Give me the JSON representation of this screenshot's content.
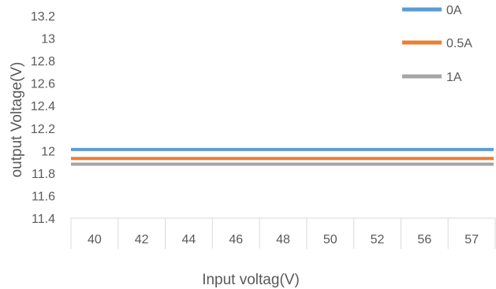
{
  "chart_data": {
    "type": "line",
    "title": "",
    "xlabel": "Input voltag(V)",
    "ylabel": "output Voltage(V)",
    "categories": [
      "40",
      "42",
      "44",
      "46",
      "48",
      "50",
      "52",
      "56",
      "57"
    ],
    "ylim": [
      11.4,
      13.2
    ],
    "y_ticks": [
      "11.4",
      "11.6",
      "11.8",
      "12",
      "12.2",
      "12.4",
      "12.6",
      "12.8",
      "13",
      "13.2"
    ],
    "grid": false,
    "legend_position": "top-right",
    "series": [
      {
        "name": "0A",
        "values": [
          12.01,
          12.01,
          12.01,
          12.01,
          12.01,
          12.01,
          12.01,
          12.01,
          12.01
        ],
        "color": "#5b9bd5"
      },
      {
        "name": "0.5A",
        "values": [
          11.93,
          11.93,
          11.93,
          11.93,
          11.93,
          11.93,
          11.93,
          11.93,
          11.93
        ],
        "color": "#ed7d31"
      },
      {
        "name": "1A",
        "values": [
          11.88,
          11.88,
          11.88,
          11.88,
          11.88,
          11.88,
          11.88,
          11.88,
          11.88
        ],
        "color": "#a5a5a5"
      }
    ]
  }
}
